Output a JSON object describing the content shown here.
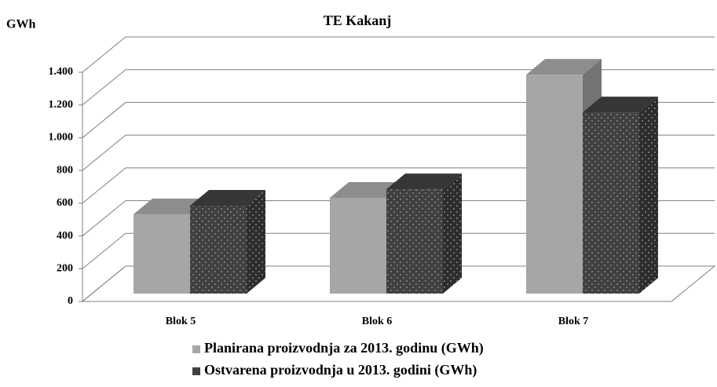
{
  "chart_data": {
    "type": "bar3d",
    "title": "TE Kakanj",
    "y_label": "GWh",
    "categories": [
      "Blok 5",
      "Blok 6",
      "Blok 7"
    ],
    "series": [
      {
        "name": "Planirana proizvodnja za 2013. godinu (GWh)",
        "color": "#a6a6a6",
        "values": [
          484,
          585,
          1337
        ]
      },
      {
        "name": "Ostvarena proizvodnja u 2013. godini (GWh)",
        "color": "#404040",
        "values": [
          537,
          637,
          1107
        ]
      }
    ],
    "ylim": [
      0,
      1400
    ],
    "yticks": [
      0,
      200,
      400,
      600,
      800,
      {
        "value": 1000,
        "label": "1.000"
      },
      {
        "value": 1200,
        "label": "1.200"
      },
      {
        "value": 1400,
        "label": "1.400"
      }
    ],
    "grid": true,
    "legend": "bottom"
  }
}
